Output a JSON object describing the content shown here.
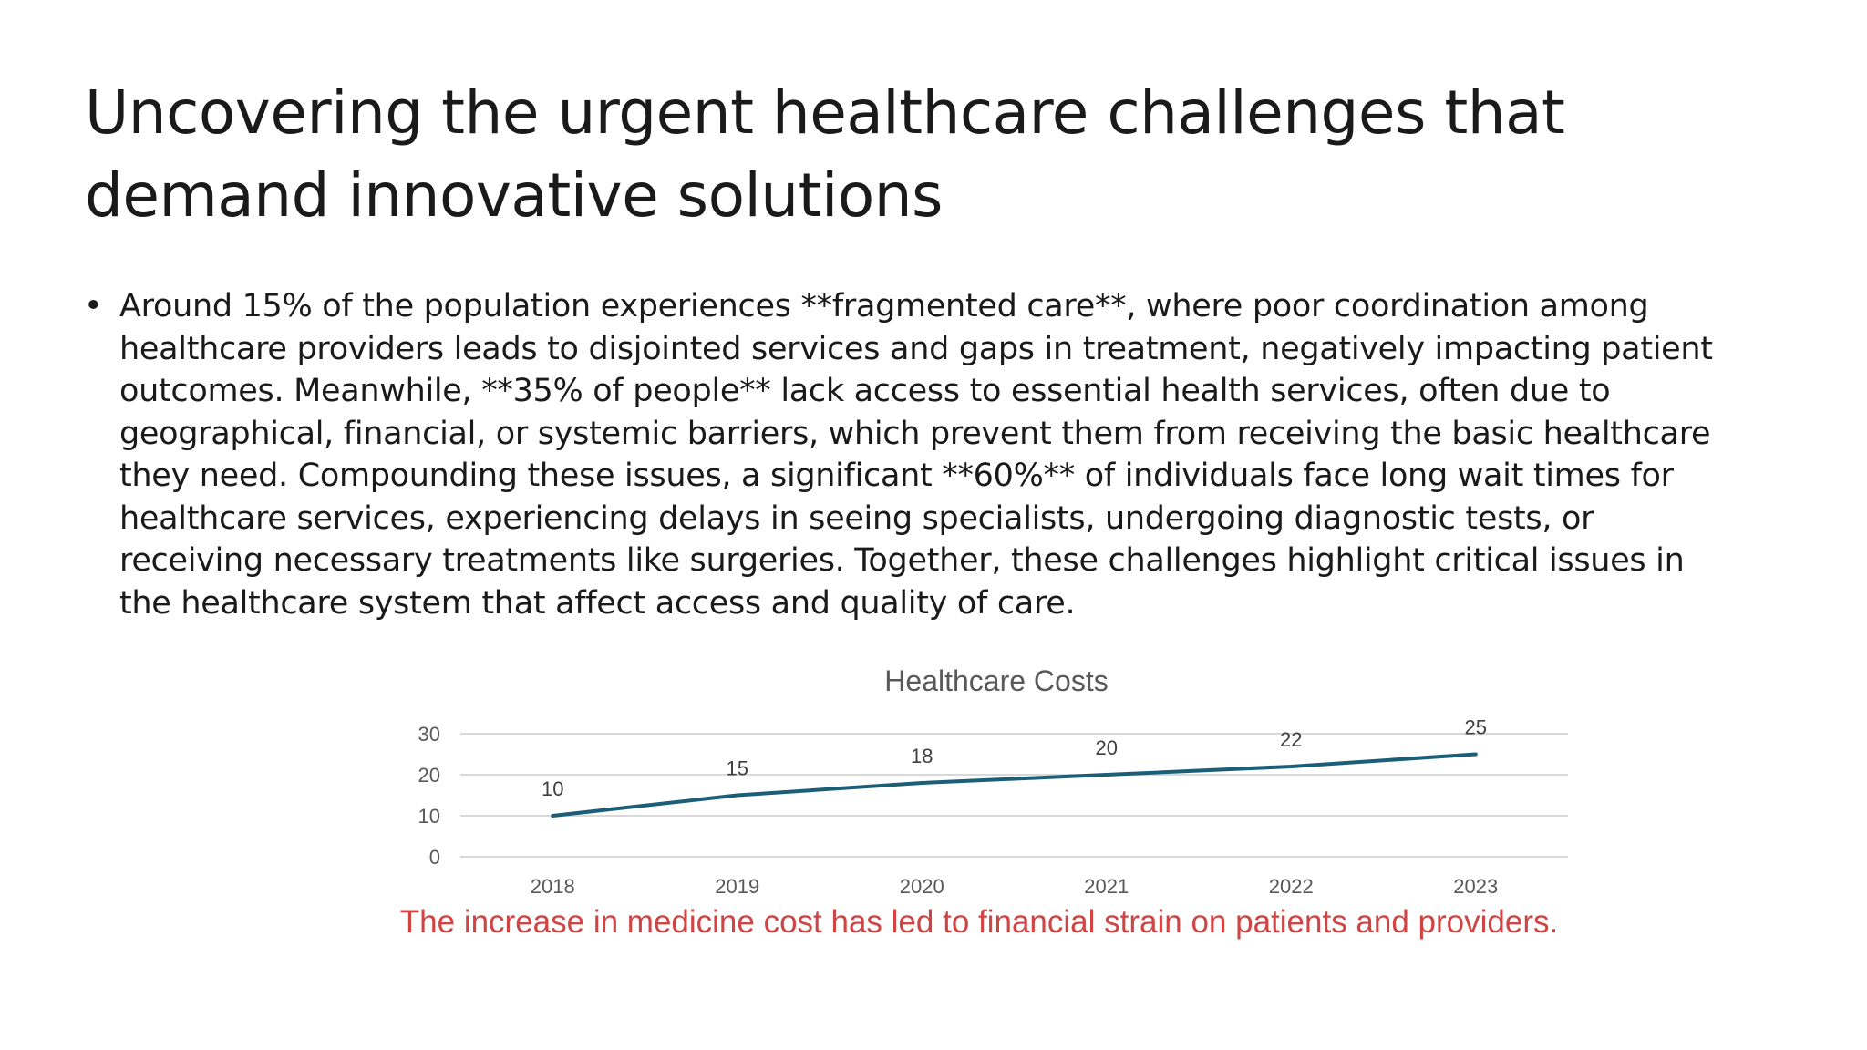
{
  "slide": {
    "title": "Uncovering the urgent healthcare challenges that demand innovative solutions",
    "bullets": [
      "Around 15% of the population experiences **fragmented care**, where poor coordination among healthcare providers leads to disjointed services and gaps in treatment, negatively impacting patient outcomes. Meanwhile, **35% of people** lack access to essential health services, often due to geographical, financial, or systemic barriers, which prevent them from receiving the basic healthcare they need. Compounding these issues, a significant **60%** of individuals face long wait times for healthcare services, experiencing delays in seeing specialists, undergoing diagnostic tests, or receiving necessary treatments like surgeries. Together, these challenges highlight critical issues in the healthcare system that affect access and quality of care."
    ],
    "caption": "The increase in medicine cost has led to financial strain on patients and providers.",
    "caption_color": "#d04444"
  },
  "chart_data": {
    "type": "line",
    "title": "Healthcare Costs",
    "x": [
      "2018",
      "2019",
      "2020",
      "2021",
      "2022",
      "2023"
    ],
    "series": [
      {
        "values": [
          10,
          15,
          18,
          20,
          22,
          25
        ],
        "color": "#1b5e78"
      }
    ],
    "data_labels": [
      "10",
      "15",
      "18",
      "20",
      "22",
      "25"
    ],
    "y_ticks": [
      "0",
      "10",
      "20",
      "30"
    ],
    "ylim": [
      0,
      30
    ],
    "xlabel": "",
    "ylabel": "",
    "grid": true,
    "legend": "none",
    "colors": {
      "line": "#1b5e78",
      "grid": "#d9d9d9",
      "tick_text": "#595959",
      "title_text": "#595959"
    }
  }
}
